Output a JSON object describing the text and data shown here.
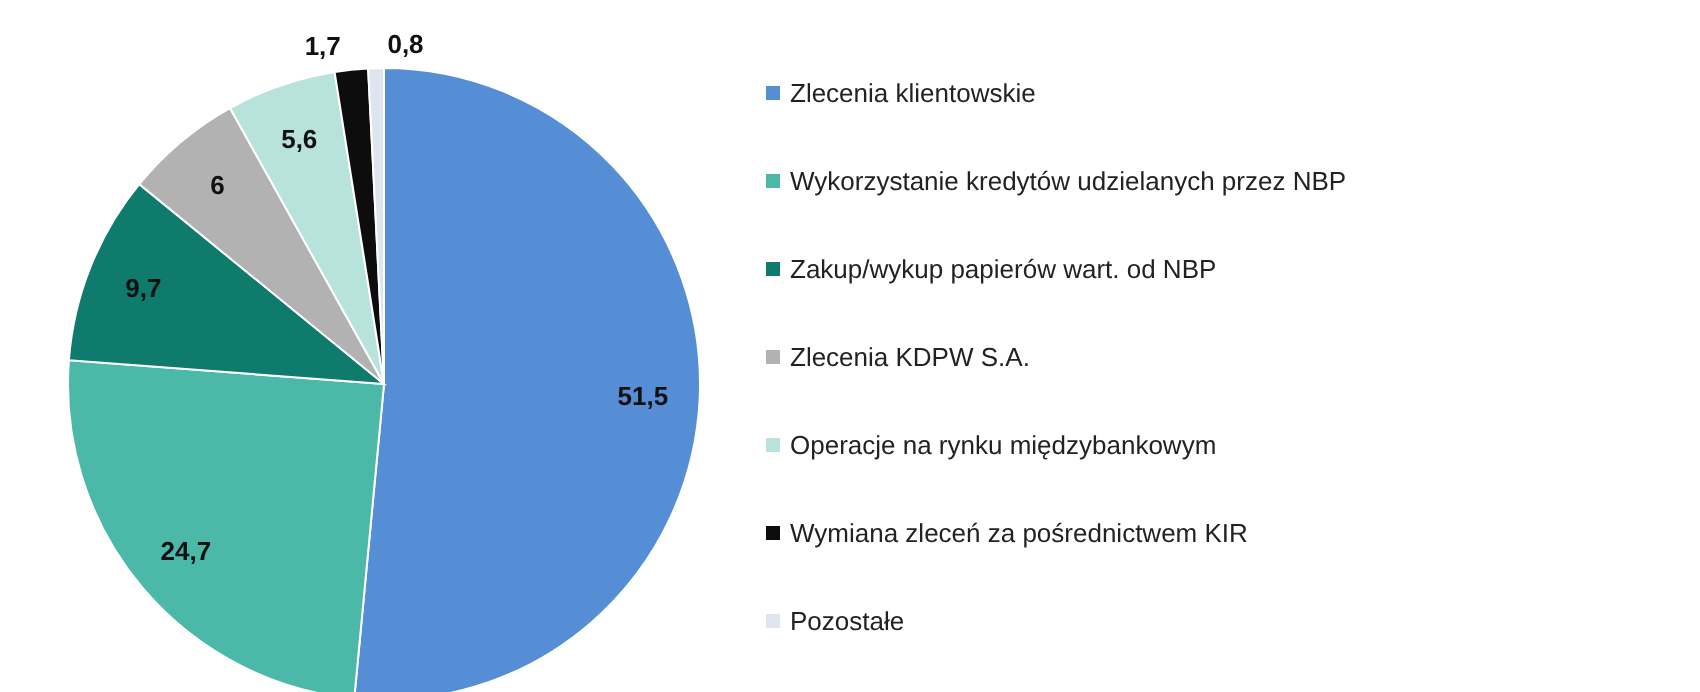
{
  "chart_data": {
    "type": "pie",
    "categories": [
      "Zlecenia klientowskie",
      "Wykorzystanie kredytów udzielanych przez NBP",
      "Zakup/wykup papierów wart. od NBP",
      "Zlecenia KDPW S.A.",
      "Operacje na rynku międzybankowym",
      "Wymiana zleceń za pośrednictwem KIR",
      "Pozostałe"
    ],
    "values": [
      51.5,
      24.7,
      9.7,
      6,
      5.6,
      1.7,
      0.8
    ],
    "value_labels": [
      "51,5",
      "24,7",
      "9,7",
      "6",
      "5,6",
      "1,7",
      "0,8"
    ],
    "colors": [
      "#558ed5",
      "#4bb8a8",
      "#0f7b6c",
      "#b2b2b2",
      "#b8e2dc",
      "#0d0d0d",
      "#dfe5ee"
    ],
    "legend": "right"
  }
}
